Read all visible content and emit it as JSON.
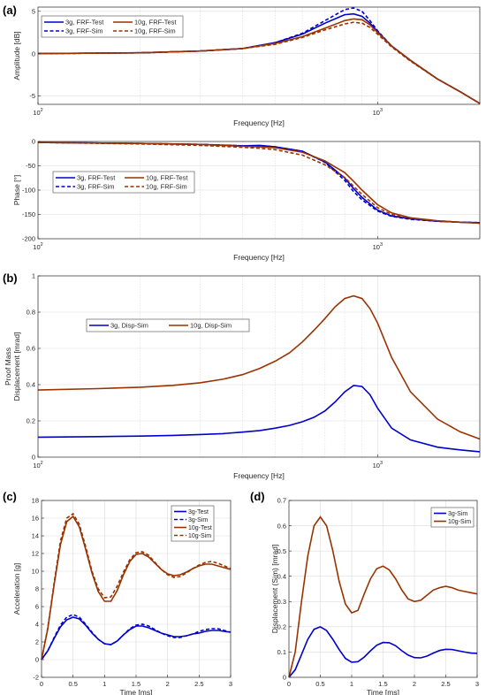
{
  "panel_labels": [
    "(a)",
    "(b)",
    "(c)",
    "(d)"
  ],
  "chart_data": [
    {
      "id": "a-amp",
      "panel": "(a)",
      "type": "line",
      "xscale": "log",
      "xlim": [
        100,
        2000
      ],
      "ylim": [
        -6,
        5.5
      ],
      "xlabel": "Frequency [Hz]",
      "ylabel": "Amplitude [dB]",
      "xticks": [
        100,
        1000
      ],
      "xtick_labels": [
        "10^2",
        "10^3"
      ],
      "yticks": [
        -5,
        0,
        5
      ],
      "ytick_labels": [
        "-5",
        "0",
        "5"
      ],
      "grid": true,
      "legend": "top-left",
      "legend_cols": 2,
      "series": [
        {
          "name": "3g, FRF-Test",
          "color": "#0000cc",
          "dash": "solid",
          "x": [
            100,
            150,
            200,
            300,
            400,
            500,
            600,
            700,
            800,
            850,
            900,
            950,
            1000,
            1100,
            1250,
            1500,
            1750,
            2000
          ],
          "y": [
            0,
            0.05,
            0.1,
            0.3,
            0.6,
            1.3,
            2.3,
            3.6,
            4.6,
            4.7,
            4.4,
            3.6,
            2.6,
            0.9,
            -0.8,
            -3.0,
            -4.5,
            -5.9
          ]
        },
        {
          "name": "3g, FRF-Sim",
          "color": "#0000cc",
          "dash": "dash",
          "x": [
            100,
            150,
            200,
            300,
            400,
            500,
            600,
            700,
            800,
            850,
            900,
            950,
            1000,
            1100,
            1250,
            1500,
            1750,
            2000
          ],
          "y": [
            0,
            0.05,
            0.1,
            0.3,
            0.6,
            1.3,
            2.4,
            3.9,
            5.2,
            5.4,
            5.0,
            3.9,
            2.7,
            0.9,
            -0.8,
            -3.0,
            -4.5,
            -5.9
          ]
        },
        {
          "name": "10g, FRF-Test",
          "color": "#993300",
          "dash": "solid",
          "x": [
            100,
            150,
            200,
            300,
            400,
            500,
            600,
            700,
            800,
            850,
            900,
            950,
            1000,
            1100,
            1250,
            1500,
            1750,
            2000
          ],
          "y": [
            0,
            0.05,
            0.1,
            0.3,
            0.6,
            1.2,
            2.0,
            3.0,
            3.9,
            4.1,
            4.0,
            3.4,
            2.5,
            0.9,
            -0.8,
            -3.0,
            -4.5,
            -5.9
          ]
        },
        {
          "name": "10g, FRF-Sim",
          "color": "#993300",
          "dash": "dash",
          "x": [
            100,
            150,
            200,
            300,
            400,
            500,
            600,
            700,
            800,
            850,
            900,
            950,
            1000,
            1100,
            1250,
            1500,
            1750,
            2000
          ],
          "y": [
            0,
            0.05,
            0.1,
            0.3,
            0.6,
            1.1,
            1.9,
            2.8,
            3.5,
            3.7,
            3.6,
            3.1,
            2.3,
            0.8,
            -0.9,
            -3.0,
            -4.5,
            -5.9
          ]
        }
      ]
    },
    {
      "id": "a-phase",
      "panel": "(a)",
      "type": "line",
      "xscale": "log",
      "xlim": [
        100,
        2000
      ],
      "ylim": [
        -200,
        0
      ],
      "xlabel": "Frequency [Hz]",
      "ylabel": "Phase [°]",
      "xticks": [
        100,
        1000
      ],
      "xtick_labels": [
        "10^2",
        "10^3"
      ],
      "yticks": [
        -200,
        -150,
        -100,
        -50,
        0
      ],
      "ytick_labels": [
        "-200",
        "-150",
        "-100",
        "-50",
        "0"
      ],
      "grid": true,
      "legend": "center-left",
      "legend_cols": 2,
      "series": [
        {
          "name": "3g, FRF-Test",
          "color": "#0000cc",
          "dash": "solid",
          "x": [
            100,
            200,
            300,
            400,
            450,
            500,
            600,
            700,
            800,
            850,
            900,
            1000,
            1100,
            1250,
            1500,
            1750,
            2000
          ],
          "y": [
            -2,
            -4,
            -6,
            -9,
            -8,
            -11,
            -20,
            -42,
            -75,
            -97,
            -115,
            -141,
            -153,
            -159,
            -164,
            -166,
            -167
          ]
        },
        {
          "name": "3g, FRF-Sim",
          "color": "#0000cc",
          "dash": "dash",
          "x": [
            100,
            200,
            300,
            400,
            450,
            500,
            600,
            700,
            800,
            850,
            900,
            1000,
            1100,
            1250,
            1500,
            1750,
            2000
          ],
          "y": [
            -2,
            -4,
            -6,
            -9,
            -9,
            -11,
            -20,
            -43,
            -80,
            -103,
            -120,
            -143,
            -154,
            -160,
            -164,
            -166,
            -167
          ]
        },
        {
          "name": "10g, FRF-Test",
          "color": "#993300",
          "dash": "solid",
          "x": [
            100,
            200,
            300,
            400,
            450,
            500,
            600,
            700,
            800,
            850,
            900,
            1000,
            1100,
            1250,
            1500,
            1750,
            2000
          ],
          "y": [
            -2,
            -4,
            -6,
            -10,
            -11,
            -13,
            -22,
            -40,
            -64,
            -82,
            -100,
            -130,
            -147,
            -157,
            -163,
            -166,
            -168
          ]
        },
        {
          "name": "10g, FRF-Sim",
          "color": "#993300",
          "dash": "dash",
          "x": [
            100,
            200,
            300,
            400,
            450,
            500,
            600,
            700,
            800,
            850,
            900,
            1000,
            1100,
            1250,
            1500,
            1750,
            2000
          ],
          "y": [
            -2,
            -5,
            -8,
            -12,
            -14,
            -17,
            -28,
            -48,
            -74,
            -92,
            -109,
            -136,
            -150,
            -158,
            -163,
            -166,
            -168
          ]
        }
      ]
    },
    {
      "id": "b",
      "panel": "(b)",
      "type": "line",
      "xscale": "log",
      "xlim": [
        100,
        2000
      ],
      "ylim": [
        0,
        1
      ],
      "xlabel": "Frequency [Hz]",
      "ylabel": "Proof Mass Displacement [mrad]",
      "ylabel_lines": [
        "Proof Mass",
        "Displacement [mrad]"
      ],
      "xticks": [
        100,
        1000
      ],
      "xtick_labels": [
        "10^2",
        "10^3"
      ],
      "yticks": [
        0,
        0.2,
        0.4,
        0.6,
        0.8,
        1
      ],
      "ytick_labels": [
        "0",
        "0.2",
        "0.4",
        "0.6",
        "0.8",
        "1"
      ],
      "grid": true,
      "legend": "top-left",
      "legend_cols": 2,
      "series": [
        {
          "name": "3g, Disp-Sim",
          "color": "#0000cc",
          "dash": "solid",
          "x": [
            100,
            150,
            200,
            250,
            300,
            350,
            400,
            450,
            500,
            550,
            600,
            650,
            700,
            750,
            800,
            850,
            900,
            950,
            1000,
            1100,
            1250,
            1500,
            1750,
            2000
          ],
          "y": [
            0.11,
            0.113,
            0.116,
            0.12,
            0.125,
            0.13,
            0.138,
            0.147,
            0.16,
            0.175,
            0.195,
            0.22,
            0.255,
            0.305,
            0.36,
            0.395,
            0.39,
            0.345,
            0.27,
            0.16,
            0.095,
            0.055,
            0.04,
            0.03
          ]
        },
        {
          "name": "10g, Disp-Sim",
          "color": "#993300",
          "dash": "solid",
          "x": [
            100,
            150,
            200,
            250,
            300,
            350,
            400,
            450,
            500,
            550,
            600,
            650,
            700,
            750,
            800,
            850,
            900,
            950,
            1000,
            1100,
            1250,
            1500,
            1750,
            2000
          ],
          "y": [
            0.37,
            0.378,
            0.386,
            0.396,
            0.41,
            0.43,
            0.455,
            0.49,
            0.53,
            0.575,
            0.635,
            0.7,
            0.765,
            0.83,
            0.875,
            0.89,
            0.875,
            0.82,
            0.74,
            0.55,
            0.36,
            0.21,
            0.14,
            0.1
          ]
        }
      ]
    },
    {
      "id": "c",
      "panel": "(c)",
      "type": "line",
      "xscale": "linear",
      "xlim": [
        0,
        3
      ],
      "ylim": [
        -2,
        18
      ],
      "xlabel": "Time [ms]",
      "ylabel": "Acceleration [g]",
      "xticks": [
        0,
        0.5,
        1,
        1.5,
        2,
        2.5,
        3
      ],
      "xtick_labels": [
        "0",
        "0.5",
        "1",
        "1.5",
        "2",
        "2.5",
        "3"
      ],
      "yticks": [
        -2,
        0,
        2,
        4,
        6,
        8,
        10,
        12,
        14,
        16,
        18
      ],
      "ytick_labels": [
        "-2",
        "0",
        "2",
        "4",
        "6",
        "8",
        "10",
        "12",
        "14",
        "16",
        "18"
      ],
      "grid": true,
      "legend": "top-right",
      "legend_cols": 1,
      "series": [
        {
          "name": "3g-Test",
          "color": "#0000cc",
          "dash": "solid",
          "x": [
            0,
            0.1,
            0.2,
            0.3,
            0.4,
            0.5,
            0.6,
            0.7,
            0.8,
            0.9,
            1.0,
            1.1,
            1.2,
            1.3,
            1.4,
            1.5,
            1.6,
            1.7,
            1.8,
            1.9,
            2.0,
            2.1,
            2.2,
            2.3,
            2.4,
            2.5,
            2.6,
            2.7,
            2.8,
            2.9,
            3.0
          ],
          "y": [
            0,
            1.0,
            2.4,
            3.7,
            4.5,
            4.8,
            4.6,
            3.9,
            3.0,
            2.3,
            1.8,
            1.7,
            2.1,
            2.8,
            3.4,
            3.8,
            3.8,
            3.6,
            3.3,
            3.0,
            2.8,
            2.6,
            2.6,
            2.7,
            2.9,
            3.0,
            3.2,
            3.3,
            3.3,
            3.2,
            3.1
          ]
        },
        {
          "name": "3g-Sim",
          "color": "#0000cc",
          "dash": "dash",
          "x": [
            0,
            0.1,
            0.2,
            0.3,
            0.4,
            0.5,
            0.6,
            0.7,
            0.8,
            0.9,
            1.0,
            1.1,
            1.2,
            1.3,
            1.4,
            1.5,
            1.6,
            1.7,
            1.8,
            1.9,
            2.0,
            2.1,
            2.2,
            2.3,
            2.4,
            2.5,
            2.6,
            2.7,
            2.8,
            2.9,
            3.0
          ],
          "y": [
            0,
            1.0,
            2.5,
            3.9,
            4.8,
            5.1,
            4.8,
            4.0,
            3.1,
            2.3,
            1.8,
            1.7,
            2.1,
            2.8,
            3.5,
            3.9,
            4.0,
            3.8,
            3.4,
            3.0,
            2.7,
            2.5,
            2.5,
            2.7,
            2.9,
            3.2,
            3.4,
            3.5,
            3.5,
            3.3,
            3.1
          ]
        },
        {
          "name": "10g-Test",
          "color": "#993300",
          "dash": "solid",
          "x": [
            0,
            0.1,
            0.2,
            0.3,
            0.4,
            0.5,
            0.6,
            0.7,
            0.8,
            0.9,
            1.0,
            1.1,
            1.2,
            1.3,
            1.4,
            1.5,
            1.6,
            1.7,
            1.8,
            1.9,
            2.0,
            2.1,
            2.2,
            2.3,
            2.4,
            2.5,
            2.6,
            2.7,
            2.8,
            2.9,
            3.0
          ],
          "y": [
            0,
            3.5,
            8.5,
            13.0,
            15.6,
            16.2,
            15.0,
            12.5,
            9.8,
            7.7,
            6.6,
            6.6,
            7.8,
            9.6,
            11.1,
            11.9,
            12.0,
            11.6,
            10.9,
            10.2,
            9.7,
            9.5,
            9.6,
            9.9,
            10.3,
            10.6,
            10.8,
            10.8,
            10.6,
            10.4,
            10.2
          ]
        },
        {
          "name": "10g-Sim",
          "color": "#993300",
          "dash": "dash",
          "x": [
            0,
            0.1,
            0.2,
            0.3,
            0.4,
            0.5,
            0.6,
            0.7,
            0.8,
            0.9,
            1.0,
            1.1,
            1.2,
            1.3,
            1.4,
            1.5,
            1.6,
            1.7,
            1.8,
            1.9,
            2.0,
            2.1,
            2.2,
            2.3,
            2.4,
            2.5,
            2.6,
            2.7,
            2.8,
            2.9,
            3.0
          ],
          "y": [
            0,
            3.6,
            8.7,
            13.4,
            16.0,
            16.5,
            15.3,
            12.8,
            10.0,
            8.0,
            7.0,
            7.1,
            8.3,
            9.9,
            11.3,
            12.1,
            12.2,
            11.8,
            11.0,
            10.2,
            9.6,
            9.3,
            9.4,
            9.8,
            10.3,
            10.7,
            11.0,
            11.1,
            10.9,
            10.6,
            10.3
          ]
        }
      ]
    },
    {
      "id": "d",
      "panel": "(d)",
      "type": "line",
      "xscale": "linear",
      "xlim": [
        0,
        3
      ],
      "ylim": [
        0,
        0.7
      ],
      "xlabel": "Time [ms]",
      "ylabel": "Displacement (Sim) [mrad]",
      "xticks": [
        0,
        0.5,
        1,
        1.5,
        2,
        2.5,
        3
      ],
      "xtick_labels": [
        "0",
        "0.5",
        "1",
        "1.5",
        "2",
        "2.5",
        "3"
      ],
      "yticks": [
        0,
        0.1,
        0.2,
        0.3,
        0.4,
        0.5,
        0.6,
        0.7
      ],
      "ytick_labels": [
        "0",
        "0.1",
        "0.2",
        "0.3",
        "0.4",
        "0.5",
        "0.6",
        "0.7"
      ],
      "grid": true,
      "legend": "top-right",
      "legend_cols": 1,
      "series": [
        {
          "name": "3g-Sim",
          "color": "#0000cc",
          "dash": "solid",
          "x": [
            0,
            0.1,
            0.2,
            0.3,
            0.4,
            0.5,
            0.6,
            0.7,
            0.8,
            0.9,
            1.0,
            1.1,
            1.2,
            1.3,
            1.4,
            1.5,
            1.6,
            1.7,
            1.8,
            1.9,
            2.0,
            2.1,
            2.2,
            2.3,
            2.4,
            2.5,
            2.6,
            2.7,
            2.8,
            2.9,
            3.0
          ],
          "y": [
            0,
            0.03,
            0.09,
            0.15,
            0.19,
            0.2,
            0.185,
            0.15,
            0.11,
            0.075,
            0.06,
            0.062,
            0.08,
            0.105,
            0.127,
            0.138,
            0.137,
            0.125,
            0.105,
            0.088,
            0.078,
            0.077,
            0.084,
            0.096,
            0.106,
            0.111,
            0.11,
            0.105,
            0.1,
            0.096,
            0.095
          ]
        },
        {
          "name": "10g-Sim",
          "color": "#993300",
          "dash": "solid",
          "x": [
            0,
            0.1,
            0.2,
            0.3,
            0.4,
            0.5,
            0.6,
            0.7,
            0.8,
            0.9,
            1.0,
            1.1,
            1.2,
            1.3,
            1.4,
            1.5,
            1.6,
            1.7,
            1.8,
            1.9,
            2.0,
            2.1,
            2.2,
            2.3,
            2.4,
            2.5,
            2.6,
            2.7,
            2.8,
            2.9,
            3.0
          ],
          "y": [
            0,
            0.1,
            0.3,
            0.48,
            0.6,
            0.635,
            0.6,
            0.5,
            0.38,
            0.29,
            0.255,
            0.265,
            0.33,
            0.39,
            0.43,
            0.44,
            0.425,
            0.39,
            0.345,
            0.31,
            0.3,
            0.305,
            0.325,
            0.345,
            0.355,
            0.36,
            0.355,
            0.345,
            0.34,
            0.335,
            0.33
          ]
        }
      ]
    }
  ]
}
